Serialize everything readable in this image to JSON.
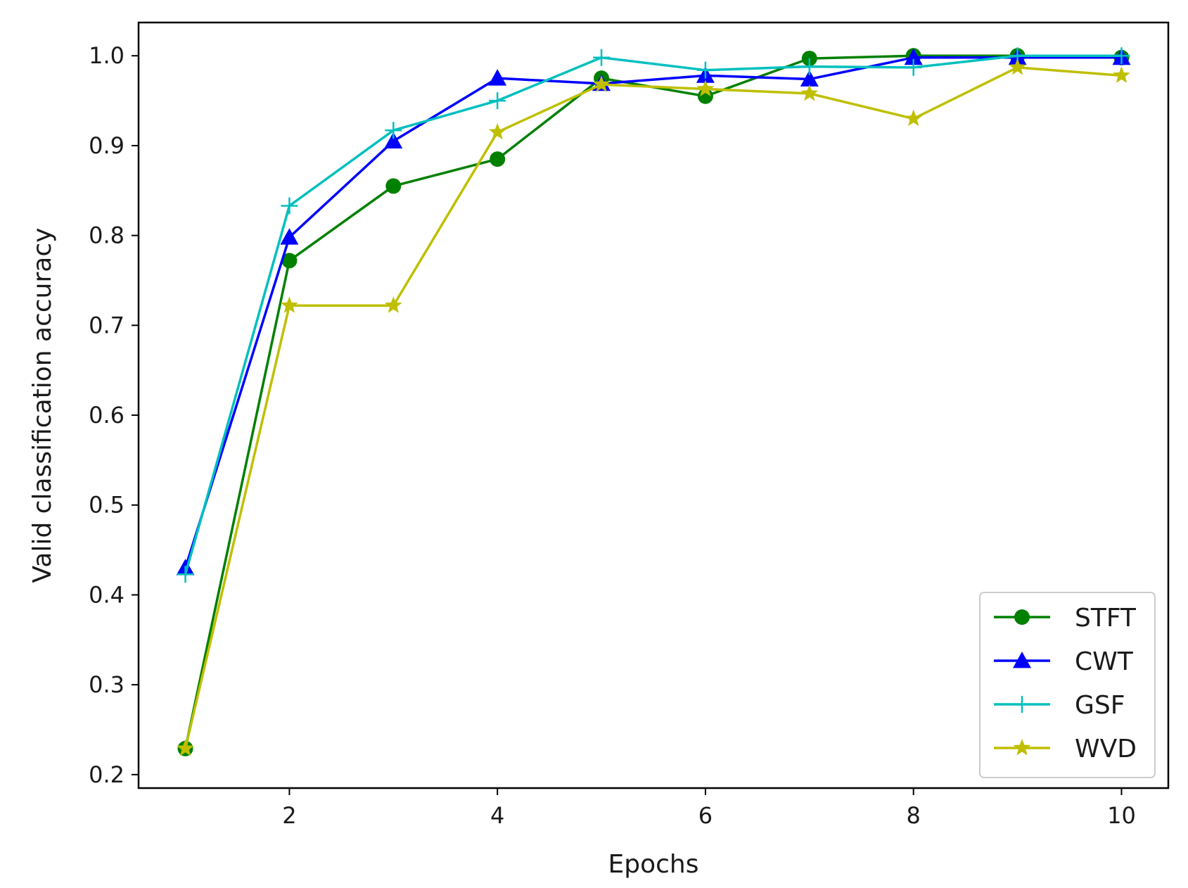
{
  "chart_data": {
    "type": "line",
    "xlabel": "Epochs",
    "ylabel": "Valid classification accuracy",
    "xlim": [
      0.55,
      10.45
    ],
    "ylim": [
      0.185,
      1.037
    ],
    "xticks": [
      2,
      4,
      6,
      8,
      10
    ],
    "yticks": [
      0.2,
      0.3,
      0.4,
      0.5,
      0.6,
      0.7,
      0.8,
      0.9,
      1.0
    ],
    "ytick_labels": [
      "0.2",
      "0.3",
      "0.4",
      "0.5",
      "0.6",
      "0.7",
      "0.8",
      "0.9",
      "1.0"
    ],
    "grid": false,
    "legend_position": "lower-right",
    "x": [
      1,
      2,
      3,
      4,
      5,
      6,
      7,
      8,
      9,
      10
    ],
    "series": [
      {
        "name": "STFT",
        "color": "#008000",
        "marker": "circle",
        "values": [
          0.229,
          0.772,
          0.855,
          0.885,
          0.975,
          0.955,
          0.997,
          1.0,
          1.0,
          0.998
        ]
      },
      {
        "name": "CWT",
        "color": "#0000ff",
        "marker": "triangle",
        "values": [
          0.43,
          0.798,
          0.905,
          0.975,
          0.969,
          0.978,
          0.974,
          0.998,
          0.998,
          0.998
        ]
      },
      {
        "name": "GSF",
        "color": "#00bfbf",
        "marker": "plus",
        "values": [
          0.423,
          0.833,
          0.917,
          0.95,
          0.998,
          0.984,
          0.988,
          0.987,
          1.0,
          1.0
        ]
      },
      {
        "name": "WVD",
        "color": "#bfbf00",
        "marker": "star",
        "values": [
          0.229,
          0.722,
          0.722,
          0.915,
          0.968,
          0.963,
          0.958,
          0.93,
          0.987,
          0.978
        ]
      }
    ]
  }
}
